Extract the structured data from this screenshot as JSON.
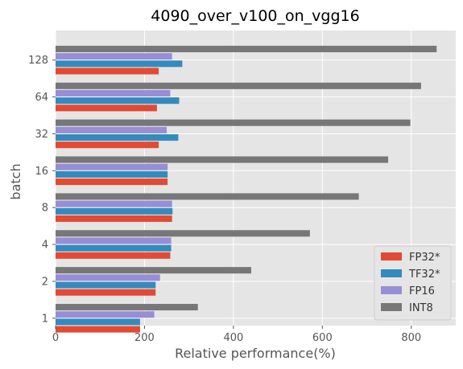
{
  "chart_data": {
    "type": "bar",
    "orientation": "horizontal",
    "title": "4090_over_v100_on_vgg16",
    "xlabel": "Relative performance(%)",
    "ylabel": "batch",
    "categories": [
      "1",
      "2",
      "4",
      "8",
      "16",
      "32",
      "64",
      "128"
    ],
    "xlim": [
      0,
      900
    ],
    "xticks": [
      0,
      200,
      400,
      600,
      800
    ],
    "grid": true,
    "legend_position": "bottom-right",
    "series": [
      {
        "name": "FP32*",
        "color": "#E24A33",
        "values": [
          190,
          225,
          258,
          262,
          252,
          232,
          228,
          232
        ]
      },
      {
        "name": "TF32*",
        "color": "#348ABD",
        "values": [
          190,
          225,
          260,
          263,
          252,
          276,
          278,
          285
        ]
      },
      {
        "name": "FP16",
        "color": "#988ED5",
        "values": [
          222,
          235,
          260,
          262,
          252,
          250,
          258,
          262
        ]
      },
      {
        "name": "INT8",
        "color": "#777777",
        "values": [
          320,
          440,
          572,
          682,
          748,
          798,
          822,
          857
        ]
      }
    ]
  }
}
